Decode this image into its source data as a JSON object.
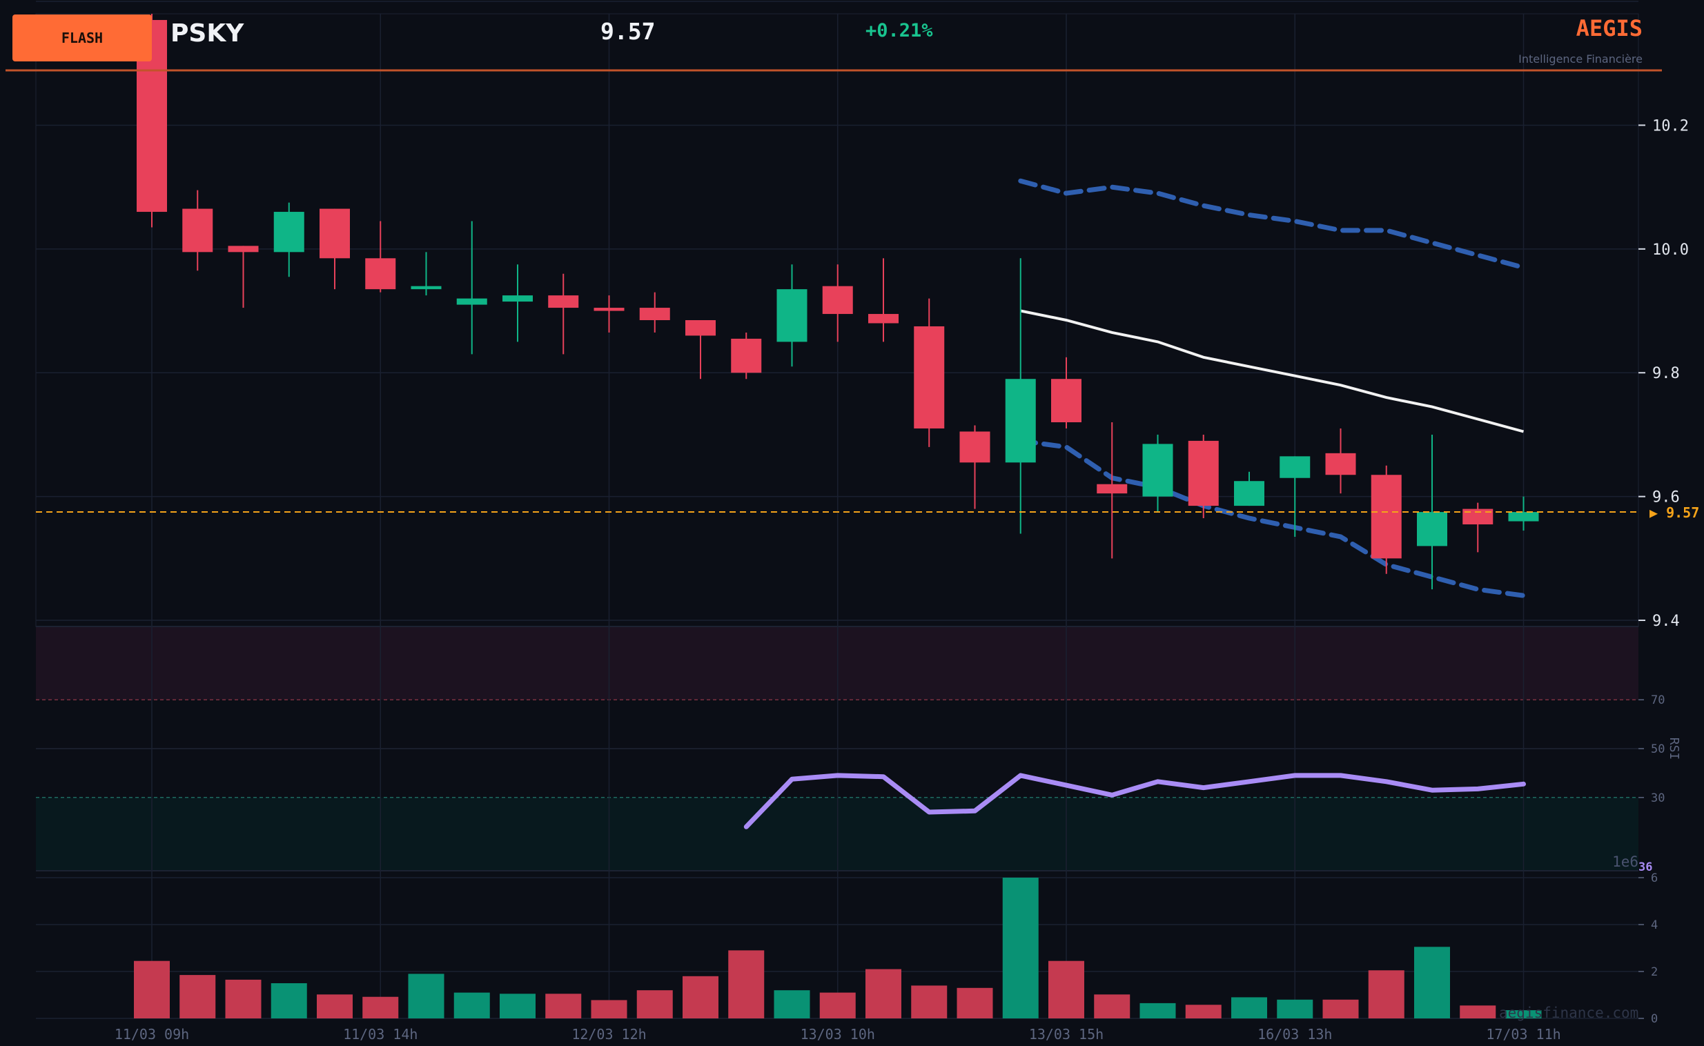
{
  "header": {
    "badge": "FLASH",
    "ticker": "PSKY",
    "price": "9.57",
    "change": "+0.21%",
    "brand": "AEGIS",
    "brand_subtitle": "Intelligence Financière"
  },
  "watermark": "aegisfinance.com",
  "colors": {
    "up": "#0fb587",
    "down": "#e8415a",
    "accent": "#ff6b35",
    "rsi": "#a98cf5",
    "bands": "#2f5fb0",
    "mid": "#f2f2f2",
    "last_price": "#f5a31a"
  },
  "chart_data": {
    "type": "candlestick",
    "x_tick_labels": [
      "11/03 09h",
      "11/03 14h",
      "12/03 12h",
      "13/03 10h",
      "13/03 15h",
      "16/03 13h",
      "17/03 11h"
    ],
    "x_tick_index": [
      0,
      5,
      10,
      15,
      20,
      25,
      30
    ],
    "price_axis": {
      "ticks": [
        9.4,
        9.6,
        9.8,
        10.0,
        10.2
      ],
      "range": [
        9.39,
        10.38
      ]
    },
    "last_price_label": "▶ 9.57",
    "last_price": 9.575,
    "candles": [
      {
        "o": 10.37,
        "h": 10.38,
        "l": 10.035,
        "c": 10.06
      },
      {
        "o": 10.065,
        "h": 10.095,
        "l": 9.965,
        "c": 9.995
      },
      {
        "o": 10.005,
        "h": 10.005,
        "l": 9.905,
        "c": 9.995
      },
      {
        "o": 9.995,
        "h": 10.075,
        "l": 9.955,
        "c": 10.06
      },
      {
        "o": 10.065,
        "h": 10.065,
        "l": 9.935,
        "c": 9.985
      },
      {
        "o": 9.985,
        "h": 10.045,
        "l": 9.93,
        "c": 9.935
      },
      {
        "o": 9.935,
        "h": 9.995,
        "l": 9.925,
        "c": 9.94
      },
      {
        "o": 9.91,
        "h": 10.045,
        "l": 9.83,
        "c": 9.92
      },
      {
        "o": 9.915,
        "h": 9.975,
        "l": 9.85,
        "c": 9.925
      },
      {
        "o": 9.925,
        "h": 9.96,
        "l": 9.83,
        "c": 9.905
      },
      {
        "o": 9.905,
        "h": 9.925,
        "l": 9.865,
        "c": 9.9
      },
      {
        "o": 9.905,
        "h": 9.93,
        "l": 9.865,
        "c": 9.885
      },
      {
        "o": 9.885,
        "h": 9.885,
        "l": 9.79,
        "c": 9.86
      },
      {
        "o": 9.855,
        "h": 9.865,
        "l": 9.79,
        "c": 9.8
      },
      {
        "o": 9.85,
        "h": 9.975,
        "l": 9.81,
        "c": 9.935
      },
      {
        "o": 9.94,
        "h": 9.975,
        "l": 9.85,
        "c": 9.895
      },
      {
        "o": 9.895,
        "h": 9.985,
        "l": 9.85,
        "c": 9.88
      },
      {
        "o": 9.875,
        "h": 9.92,
        "l": 9.68,
        "c": 9.71
      },
      {
        "o": 9.705,
        "h": 9.715,
        "l": 9.58,
        "c": 9.655
      },
      {
        "o": 9.655,
        "h": 9.985,
        "l": 9.54,
        "c": 9.79
      },
      {
        "o": 9.79,
        "h": 9.825,
        "l": 9.71,
        "c": 9.72
      },
      {
        "o": 9.62,
        "h": 9.72,
        "l": 9.5,
        "c": 9.605
      },
      {
        "o": 9.6,
        "h": 9.7,
        "l": 9.575,
        "c": 9.685
      },
      {
        "o": 9.69,
        "h": 9.7,
        "l": 9.565,
        "c": 9.585
      },
      {
        "o": 9.585,
        "h": 9.64,
        "l": 9.585,
        "c": 9.625
      },
      {
        "o": 9.63,
        "h": 9.665,
        "l": 9.535,
        "c": 9.665
      },
      {
        "o": 9.67,
        "h": 9.71,
        "l": 9.605,
        "c": 9.635
      },
      {
        "o": 9.635,
        "h": 9.65,
        "l": 9.475,
        "c": 9.5
      },
      {
        "o": 9.52,
        "h": 9.7,
        "l": 9.45,
        "c": 9.575
      },
      {
        "o": 9.58,
        "h": 9.59,
        "l": 9.51,
        "c": 9.555
      },
      {
        "o": 9.56,
        "h": 9.6,
        "l": 9.545,
        "c": 9.575
      }
    ],
    "bollinger": {
      "start_index": 19,
      "upper": [
        10.11,
        10.09,
        10.1,
        10.09,
        10.07,
        10.055,
        10.045,
        10.03,
        10.03,
        10.01,
        9.99,
        9.97
      ],
      "middle": [
        9.9,
        9.885,
        9.865,
        9.85,
        9.825,
        9.81,
        9.795,
        9.78,
        9.76,
        9.745,
        9.725,
        9.705
      ],
      "lower": [
        9.69,
        9.68,
        9.63,
        9.615,
        9.585,
        9.565,
        9.55,
        9.535,
        9.49,
        9.47,
        9.45,
        9.44
      ]
    },
    "rsi": {
      "label": "RSI",
      "ticks": [
        30,
        50,
        70
      ],
      "range": [
        0,
        100
      ],
      "overbought": 70,
      "oversold": 30,
      "start_index": 13,
      "values": [
        18,
        37.5,
        39,
        38.5,
        24,
        24.5,
        39,
        35,
        31,
        36.5,
        34,
        36.5,
        39,
        39,
        36.5,
        33,
        33.5,
        35.5
      ],
      "last_label": "36"
    },
    "volume": {
      "multiplier_label": "1e6",
      "ticks": [
        0,
        2,
        4,
        6
      ],
      "range": [
        0,
        6
      ],
      "values": [
        2.45,
        1.85,
        1.65,
        1.5,
        1.02,
        0.92,
        1.9,
        1.1,
        1.05,
        1.05,
        0.78,
        1.2,
        1.8,
        2.9,
        1.2,
        1.1,
        2.1,
        1.4,
        1.3,
        6,
        2.45,
        1.02,
        0.65,
        0.58,
        0.9,
        0.8,
        0.8,
        2.05,
        3.05,
        0.55,
        0.35
      ]
    }
  }
}
